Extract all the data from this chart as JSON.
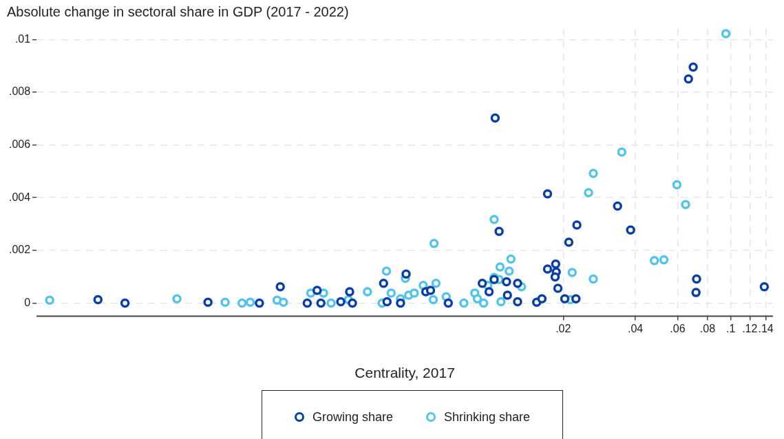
{
  "chart_data": {
    "type": "scatter",
    "title": "Absolute change in sectoral share in GDP (2017 - 2022)",
    "xlabel": "Centrality, 2017",
    "log": "x",
    "grid": true,
    "legend": "bottom",
    "marker": "circle",
    "xlim": [
      0.000127,
      0.15
    ],
    "ylim": [
      -0.0005,
      0.0104
    ],
    "xticks": [
      {
        "value": 0.02,
        "label": ".02"
      },
      {
        "value": 0.04,
        "label": ".04"
      },
      {
        "value": 0.06,
        "label": ".06"
      },
      {
        "value": 0.08,
        "label": ".08"
      },
      {
        "value": 0.1,
        "label": ".1"
      },
      {
        "value": 0.12,
        "label": ".12"
      },
      {
        "value": 0.14,
        "label": ".14"
      }
    ],
    "yticks": [
      0,
      {
        "value": 0.002,
        "label": ".002"
      },
      {
        "value": 0.004,
        "label": ".004"
      },
      {
        "value": 0.006,
        "label": ".006"
      },
      {
        "value": 0.008,
        "label": ".008"
      },
      {
        "value": 0.01,
        "label": ".01"
      }
    ],
    "series": [
      {
        "name": "Growing share",
        "color": "#0a3fa6",
        "x": [
          0.000229,
          0.000297,
          0.000659,
          0.00108,
          0.00132,
          0.00171,
          0.00188,
          0.00195,
          0.00236,
          0.00257,
          0.00264,
          0.00356,
          0.00368,
          0.00419,
          0.00442,
          0.00534,
          0.00559,
          0.00663,
          0.00919,
          0.00981,
          0.0103,
          0.0104,
          0.0108,
          0.0116,
          0.0117,
          0.0129,
          0.0129,
          0.0155,
          0.0163,
          0.0172,
          0.0172,
          0.0186,
          0.0187,
          0.0185,
          0.019,
          0.0203,
          0.0226,
          0.0211,
          0.0228,
          0.0337,
          0.0382,
          0.0666,
          0.0697,
          0.072,
          0.0716,
          0.138
        ],
        "values": [
          0.00013,
          0,
          3e-05,
          0,
          0.00062,
          0,
          0.00048,
          0,
          5e-05,
          0.00043,
          0,
          0.00075,
          5e-05,
          0,
          0.0011,
          0.00043,
          0.00048,
          0,
          0.00075,
          0.00043,
          0.00089,
          0.00702,
          0.00272,
          0.00081,
          0.0003,
          0.00075,
          5e-05,
          3e-05,
          0.00016,
          0.00414,
          0.00129,
          0.00148,
          0.00118,
          0.00099,
          0.00056,
          0.00016,
          0.00016,
          0.00231,
          0.00296,
          0.00368,
          0.00277,
          0.0085,
          0.00895,
          0.00091,
          0.0004,
          0.00062
        ]
      },
      {
        "name": "Shrinking share",
        "color": "#56c3e8",
        "x": [
          0.000144,
          0.000489,
          0.000777,
          0.000914,
          0.000989,
          0.00128,
          0.00136,
          0.00177,
          0.002,
          0.00215,
          0.00254,
          0.00305,
          0.00351,
          0.00366,
          0.00383,
          0.00439,
          0.00419,
          0.00453,
          0.00478,
          0.00521,
          0.00589,
          0.00574,
          0.00578,
          0.0065,
          0.0077,
          0.00855,
          0.00877,
          0.00931,
          0.00969,
          0.0103,
          0.0109,
          0.0108,
          0.011,
          0.0119,
          0.0121,
          0.0134,
          0.0103,
          0.0218,
          0.0214,
          0.0267,
          0.0255,
          0.0267,
          0.0351,
          0.048,
          0.0526,
          0.0596,
          0.0648,
          0.0954
        ],
        "values": [
          0.00011,
          0.00016,
          3e-05,
          0,
          3e-05,
          0.00011,
          3e-05,
          0.00038,
          0.00038,
          0,
          0.00013,
          0.00043,
          0,
          0.00121,
          0.00038,
          0.00094,
          0.00016,
          0.0003,
          0.00038,
          0.00067,
          0.00075,
          0.00013,
          0.00226,
          0.00024,
          0,
          0.00038,
          0.00016,
          0,
          0.00067,
          0.00097,
          0.00137,
          0.00089,
          5e-05,
          0.00121,
          0.00167,
          0.00062,
          0.00317,
          0.00116,
          0.00013,
          0.00091,
          0.00419,
          0.00492,
          0.00573,
          0.00161,
          0.00164,
          0.00449,
          0.00374,
          0.01022
        ]
      }
    ]
  }
}
